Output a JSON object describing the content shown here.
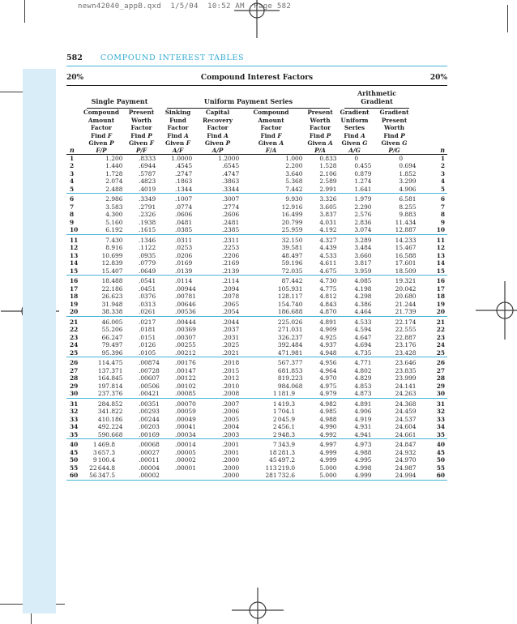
{
  "print_header": "newn42040_appB.qxd  1/5/04  10:52 AM  Page 582",
  "running_head": {
    "page_number": "582",
    "chapter_title": "COMPOUND INTEREST TABLES"
  },
  "table_header": {
    "rate_left": "20%",
    "title": "Compound Interest Factors",
    "rate_right": "20%"
  },
  "column_groups": [
    {
      "label": "Single Payment",
      "colspan": 2
    },
    {
      "label": "Uniform Payment Series",
      "colspan": 4
    },
    {
      "label": "Arithmetic Gradient",
      "colspan": 2
    }
  ],
  "n_label": "n",
  "columns": [
    {
      "name": [
        "Compound",
        "Amount",
        "Factor"
      ],
      "find": "Find F",
      "given": "Given P",
      "ratio": "F/P"
    },
    {
      "name": [
        "Present",
        "Worth",
        "Factor"
      ],
      "find": "Find P",
      "given": "Given F",
      "ratio": "P/F"
    },
    {
      "name": [
        "Sinking",
        "Fund",
        "Factor"
      ],
      "find": "Find A",
      "given": "Given F",
      "ratio": "A/F"
    },
    {
      "name": [
        "Capital",
        "Recovery",
        "Factor"
      ],
      "find": "Find A",
      "given": "Given P",
      "ratio": "A/P"
    },
    {
      "name": [
        "Compound",
        "Amount",
        "Factor"
      ],
      "find": "Find F",
      "given": "Given A",
      "ratio": "F/A"
    },
    {
      "name": [
        "Present",
        "Worth",
        "Factor"
      ],
      "find": "Find P",
      "given": "Given A",
      "ratio": "P/A"
    },
    {
      "name": [
        "Gradient",
        "Uniform",
        "Series"
      ],
      "find": "Find A",
      "given": "Given G",
      "ratio": "A/G"
    },
    {
      "name": [
        "Gradient",
        "Present",
        "Worth"
      ],
      "find": "Find P",
      "given": "Given G",
      "ratio": "P/G"
    }
  ],
  "rows": [
    [
      "1",
      "1.200",
      ".8333",
      "1.0000",
      "1.2000",
      "1.000",
      "0.833",
      "0",
      "0"
    ],
    [
      "2",
      "1.440",
      ".6944",
      ".4545",
      ".6545",
      "2.200",
      "1.528",
      "0.455",
      "0.694"
    ],
    [
      "3",
      "1.728",
      ".5787",
      ".2747",
      ".4747",
      "3.640",
      "2.106",
      "0.879",
      "1.852"
    ],
    [
      "4",
      "2.074",
      ".4823",
      ".1863",
      ".3863",
      "5.368",
      "2.589",
      "1.274",
      "3.299"
    ],
    [
      "5",
      "2.488",
      ".4019",
      ".1344",
      ".3344",
      "7.442",
      "2.991",
      "1.641",
      "4.906"
    ],
    [
      "6",
      "2.986",
      ".3349",
      ".1007",
      ".3007",
      "9.930",
      "3.326",
      "1.979",
      "6.581"
    ],
    [
      "7",
      "3.583",
      ".2791",
      ".0774",
      ".2774",
      "12.916",
      "3.605",
      "2.290",
      "8.255"
    ],
    [
      "8",
      "4.300",
      ".2326",
      ".0606",
      ".2606",
      "16.499",
      "3.837",
      "2.576",
      "9.883"
    ],
    [
      "9",
      "5.160",
      ".1938",
      ".0481",
      ".2481",
      "20.799",
      "4.031",
      "2.836",
      "11.434"
    ],
    [
      "10",
      "6.192",
      ".1615",
      ".0385",
      ".2385",
      "25.959",
      "4.192",
      "3.074",
      "12.887"
    ],
    [
      "11",
      "7.430",
      ".1346",
      ".0311",
      ".2311",
      "32.150",
      "4.327",
      "3.289",
      "14.233"
    ],
    [
      "12",
      "8.916",
      ".1122",
      ".0253",
      ".2253",
      "39.581",
      "4.439",
      "3.484",
      "15.467"
    ],
    [
      "13",
      "10.699",
      ".0935",
      ".0206",
      ".2206",
      "48.497",
      "4.533",
      "3.660",
      "16.588"
    ],
    [
      "14",
      "12.839",
      ".0779",
      ".0169",
      ".2169",
      "59.196",
      "4.611",
      "3.817",
      "17.601"
    ],
    [
      "15",
      "15.407",
      ".0649",
      ".0139",
      ".2139",
      "72.035",
      "4.675",
      "3.959",
      "18.509"
    ],
    [
      "16",
      "18.488",
      ".0541",
      ".0114",
      ".2114",
      "87.442",
      "4.730",
      "4.085",
      "19.321"
    ],
    [
      "17",
      "22.186",
      ".0451",
      ".00944",
      ".2094",
      "105.931",
      "4.775",
      "4.198",
      "20.042"
    ],
    [
      "18",
      "26.623",
      ".0376",
      ".00781",
      ".2078",
      "128.117",
      "4.812",
      "4.298",
      "20.680"
    ],
    [
      "19",
      "31.948",
      ".0313",
      ".00646",
      ".2065",
      "154.740",
      "4.843",
      "4.386",
      "21.244"
    ],
    [
      "20",
      "38.338",
      ".0261",
      ".00536",
      ".2054",
      "186.688",
      "4.870",
      "4.464",
      "21.739"
    ],
    [
      "21",
      "46.005",
      ".0217",
      ".00444",
      ".2044",
      "225.026",
      "4.891",
      "4.533",
      "22.174"
    ],
    [
      "22",
      "55.206",
      ".0181",
      ".00369",
      ".2037",
      "271.031",
      "4.909",
      "4.594",
      "22.555"
    ],
    [
      "23",
      "66.247",
      ".0151",
      ".00307",
      ".2031",
      "326.237",
      "4.925",
      "4.647",
      "22.887"
    ],
    [
      "24",
      "79.497",
      ".0126",
      ".00255",
      ".2025",
      "392.484",
      "4.937",
      "4.694",
      "23.176"
    ],
    [
      "25",
      "95.396",
      ".0105",
      ".00212",
      ".2021",
      "471.981",
      "4.948",
      "4.735",
      "23.428"
    ],
    [
      "26",
      "114.475",
      ".00874",
      ".00176",
      ".2018",
      "567.377",
      "4.956",
      "4.771",
      "23.646"
    ],
    [
      "27",
      "137.371",
      ".00728",
      ".00147",
      ".2015",
      "681.853",
      "4.964",
      "4.802",
      "23.835"
    ],
    [
      "28",
      "164.845",
      ".00607",
      ".00122",
      ".2012",
      "819.223",
      "4.970",
      "4.829",
      "23.999"
    ],
    [
      "29",
      "197.814",
      ".00506",
      ".00102",
      ".2010",
      "984.068",
      "4.975",
      "4.853",
      "24.141"
    ],
    [
      "30",
      "237.376",
      ".00421",
      ".00085",
      ".2008",
      "1 181.9",
      "4.979",
      "4.873",
      "24.263"
    ],
    [
      "31",
      "284.852",
      ".00351",
      ".00070",
      ".2007",
      "1 419.3",
      "4.982",
      "4.891",
      "24.368"
    ],
    [
      "32",
      "341.822",
      ".00293",
      ".00059",
      ".2006",
      "1 704.1",
      "4.985",
      "4.906",
      "24.459"
    ],
    [
      "33",
      "410.186",
      ".00244",
      ".00049",
      ".2005",
      "2 045.9",
      "4.988",
      "4.919",
      "24.537"
    ],
    [
      "34",
      "492.224",
      ".00203",
      ".00041",
      ".2004",
      "2 456.1",
      "4.990",
      "4.931",
      "24.604"
    ],
    [
      "35",
      "590.668",
      ".00169",
      ".00034",
      ".2003",
      "2 948.3",
      "4.992",
      "4.941",
      "24.661"
    ],
    [
      "40",
      "1 469.8",
      ".00068",
      ".00014",
      ".2001",
      "7 343.9",
      "4.997",
      "4.973",
      "24.847"
    ],
    [
      "45",
      "3 657.3",
      ".00027",
      ".00005",
      ".2001",
      "18 281.3",
      "4.999",
      "4.988",
      "24.932"
    ],
    [
      "50",
      "9 100.4",
      ".00011",
      ".00002",
      ".2000",
      "45 497.2",
      "4.999",
      "4.995",
      "24.970"
    ],
    [
      "55",
      "22 644.8",
      ".00004",
      ".00001",
      ".2000",
      "113 219.0",
      "5.000",
      "4.998",
      "24.987"
    ],
    [
      "60",
      "56 347.5",
      ".00002",
      "",
      ".2000",
      "281 732.6",
      "5.000",
      "4.999",
      "24.994"
    ]
  ],
  "colors": {
    "accent_cyan": "#45b4d6",
    "heading_cyan": "#2fa9d3",
    "margin_band_blue": "#d8edf8",
    "rule_black": "#1e1e1e",
    "slug_gray": "#6d6d6d"
  }
}
